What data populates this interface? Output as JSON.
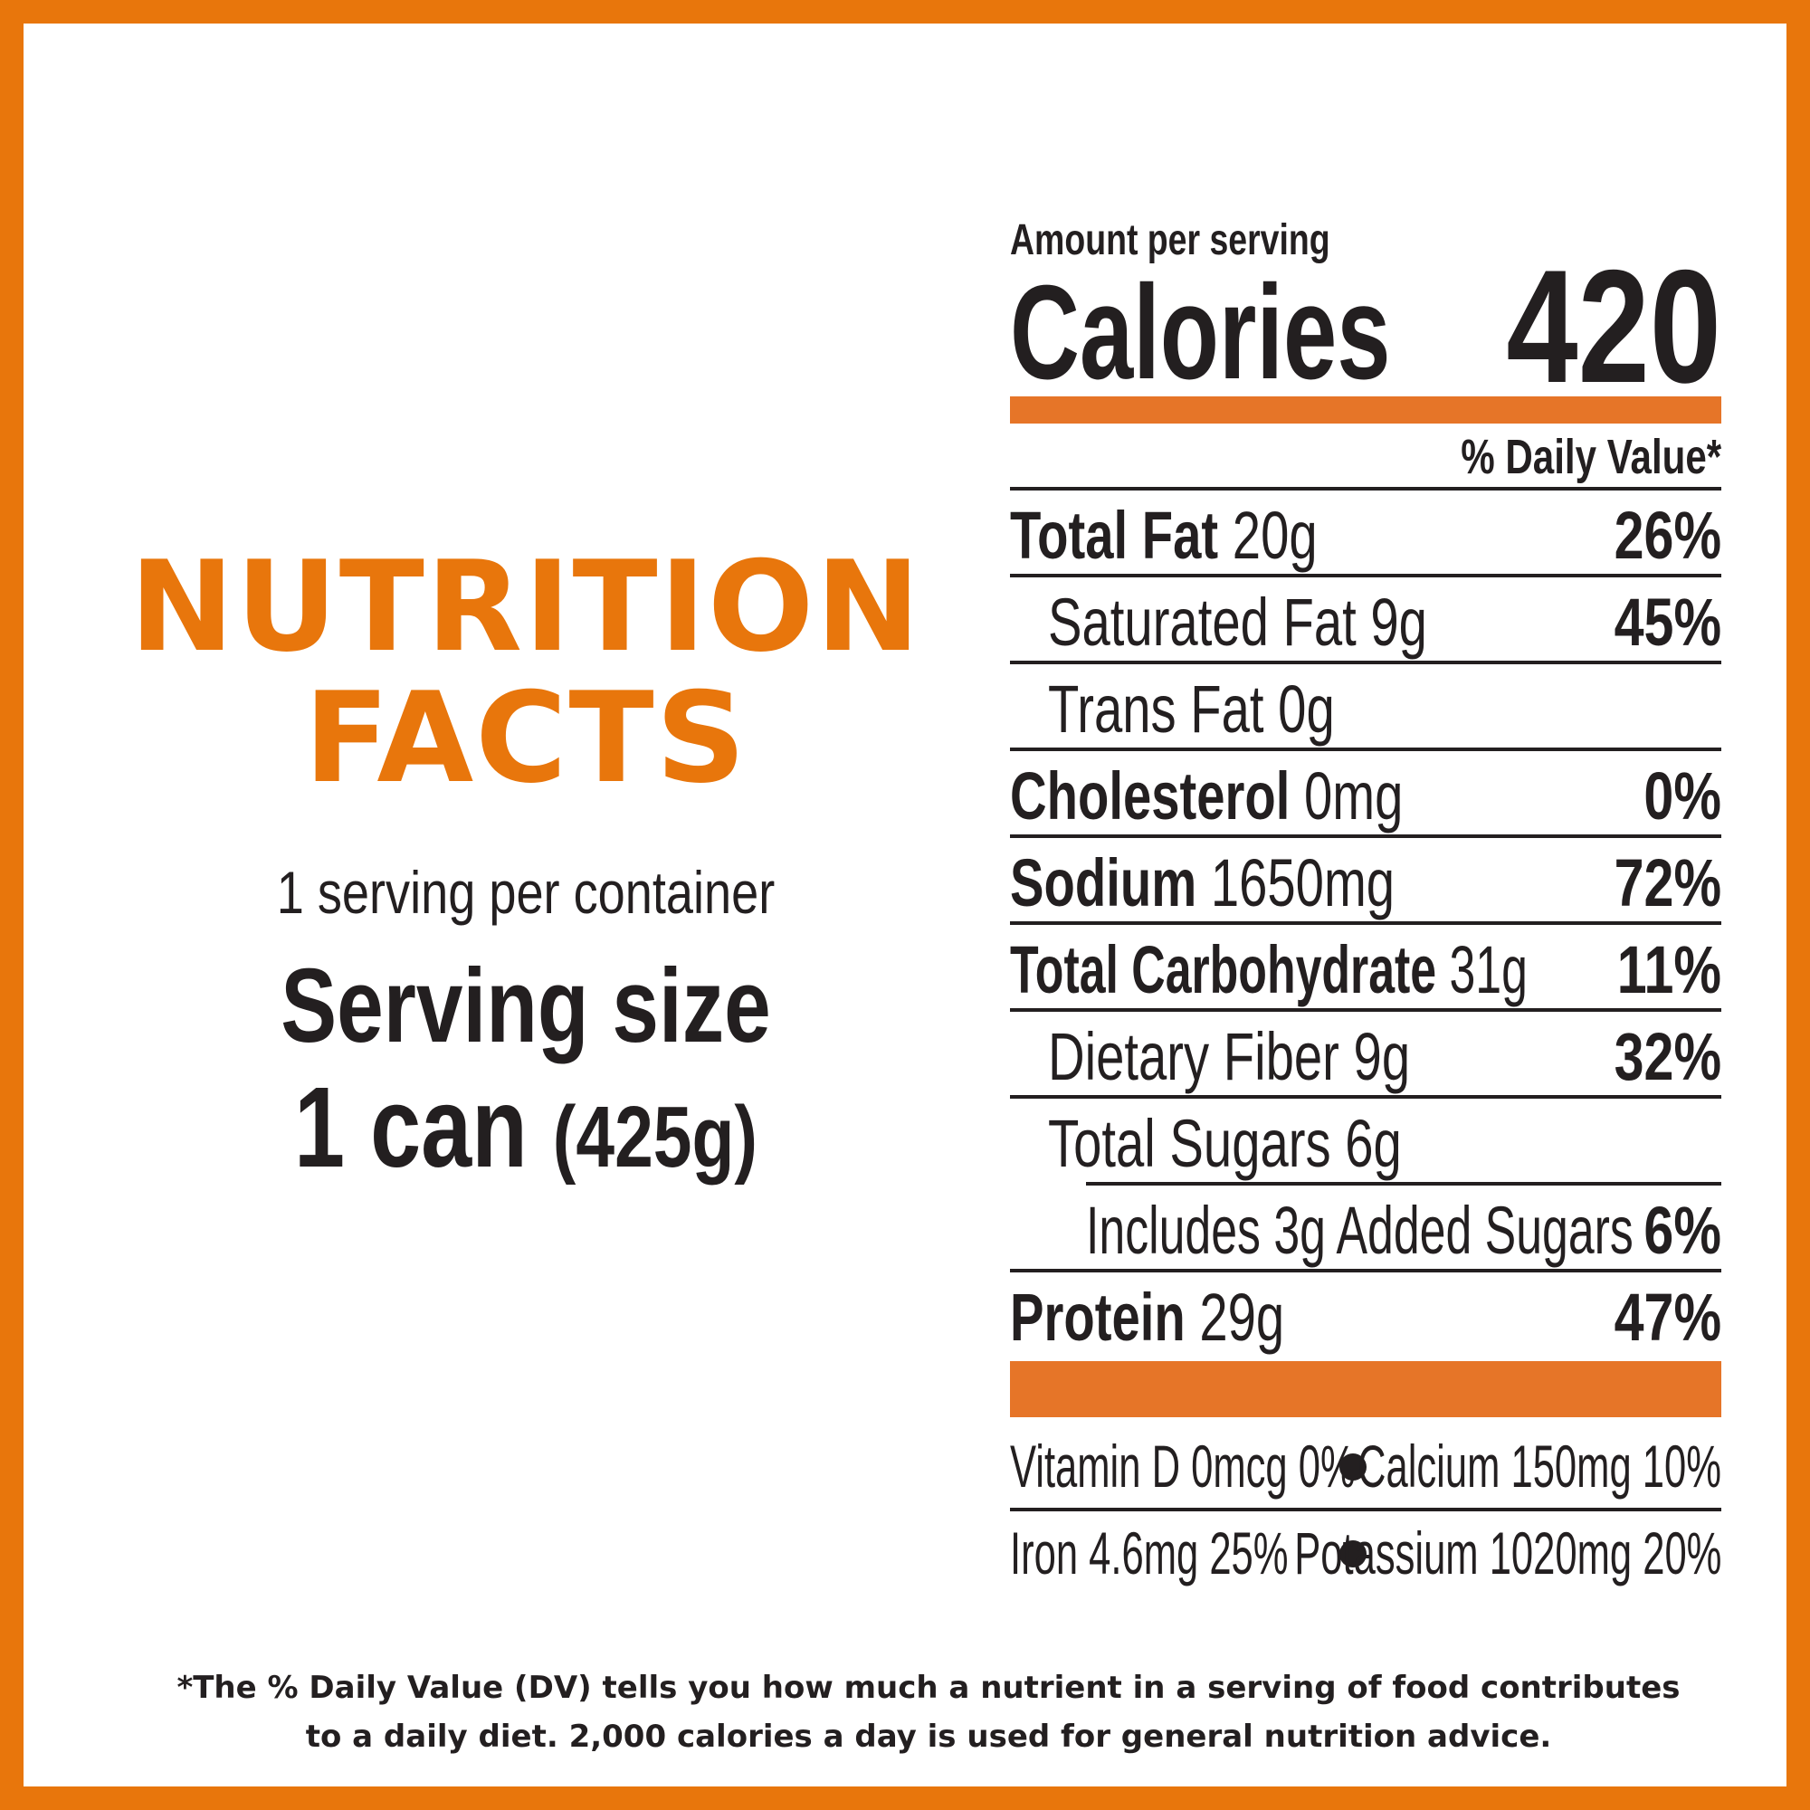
{
  "brand": {
    "accent": "#E8760C",
    "bar": "#E67528",
    "text": "#231F20"
  },
  "left": {
    "headline_line1": "NUTRITION",
    "headline_line2": "FACTS",
    "servings_per_container": "1 serving per container",
    "serving_size_label": "Serving size",
    "serving_size_amount": "1 can",
    "serving_size_weight": "(425g)"
  },
  "panel": {
    "amount_per_serving": "Amount per serving",
    "calories_label": "Calories",
    "calories_value": "420",
    "daily_value_header": "% Daily Value*",
    "nutrients": [
      {
        "name": "Total Fat",
        "amount": "20g",
        "dv": "26%"
      },
      {
        "name": "Saturated Fat",
        "amount": "9g",
        "dv": "45%"
      },
      {
        "name": "Trans Fat",
        "amount": "0g",
        "dv": ""
      },
      {
        "name": "Cholesterol",
        "amount": "0mg",
        "dv": "0%"
      },
      {
        "name": "Sodium",
        "amount": "1650mg",
        "dv": "72%"
      },
      {
        "name": "Total Carbohydrate",
        "amount": "31g",
        "dv": "11%"
      },
      {
        "name": "Dietary Fiber",
        "amount": "9g",
        "dv": "32%"
      },
      {
        "name": "Total Sugars",
        "amount": "6g",
        "dv": ""
      },
      {
        "name": "Includes 3g Added Sugars",
        "amount": "",
        "dv": "6%"
      },
      {
        "name": "Protein",
        "amount": "29g",
        "dv": "47%"
      }
    ],
    "vitamins": [
      {
        "text": "Vitamin D 0mcg 0%"
      },
      {
        "text": "Calcium 150mg 10%"
      },
      {
        "text": "Iron 4.6mg 25%"
      },
      {
        "text": "Potassium 1020mg 20%"
      }
    ]
  },
  "footnote": {
    "line1": "*The % Daily Value (DV) tells you how much a nutrient in a serving of food contributes",
    "line2": "to a daily diet. 2,000 calories a day is used for general nutrition advice."
  }
}
